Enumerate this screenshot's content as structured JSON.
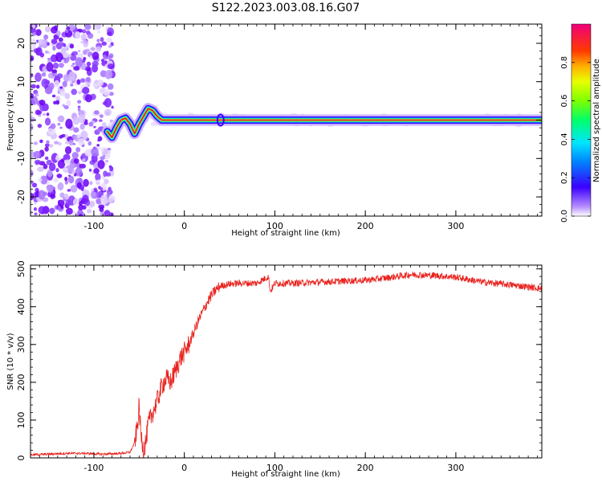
{
  "title": "S122.2023.003.08.16.G07",
  "colors": {
    "snr_line": "#e8221d",
    "track": "#e0114a",
    "noise": "#7a1cff"
  },
  "chart_data": [
    {
      "type": "heatmap",
      "xlabel": "Height of straight line (km)",
      "ylabel": "Frequency (Hz)",
      "xlim": [
        -170,
        395
      ],
      "ylim": [
        -25,
        25
      ],
      "xticks": [
        -100,
        0,
        100,
        200,
        300
      ],
      "yticks": [
        -20,
        -10,
        0,
        10,
        20
      ],
      "grid": false,
      "colorbar": {
        "label": "Normalized spectral amplitude",
        "range": [
          0,
          1
        ],
        "ticks": [
          "0.0",
          "0.2",
          "0.4",
          "0.6",
          "0.8"
        ],
        "colormap": "rainbow"
      },
      "noise_region_x": [
        -170,
        -85
      ],
      "ridge": {
        "x": [
          -85,
          -80,
          -75,
          -70,
          -65,
          -60,
          -55,
          -50,
          -45,
          -40,
          -35,
          -30,
          -25,
          -20,
          -10,
          0,
          40,
          100,
          200,
          300,
          395
        ],
        "freq": [
          -3,
          -4.5,
          -2,
          0,
          0.5,
          -1,
          -3.5,
          -1,
          1,
          3,
          2.5,
          1,
          0,
          0,
          0,
          0,
          0,
          0,
          0,
          0,
          0
        ]
      }
    },
    {
      "type": "line",
      "xlabel": "Height of straight line (km)",
      "ylabel": "SNR (10 * v/v)",
      "xlim": [
        -170,
        395
      ],
      "ylim": [
        0,
        510
      ],
      "xticks": [
        -100,
        0,
        100,
        200,
        300
      ],
      "yticks": [
        0,
        100,
        200,
        300,
        400,
        500
      ],
      "grid": false,
      "series": [
        {
          "x": [
            -170,
            -150,
            -130,
            -110,
            -90,
            -70,
            -60,
            -55,
            -52,
            -50,
            -48,
            -45,
            -42,
            -40,
            -35,
            -30,
            -25,
            -20,
            -15,
            -10,
            -5,
            0,
            5,
            10,
            15,
            20,
            25,
            30,
            35,
            40,
            50,
            60,
            80,
            93,
            95,
            100,
            120,
            150,
            180,
            200,
            220,
            250,
            280,
            300,
            330,
            360,
            395
          ],
          "y": [
            8,
            10,
            12,
            12,
            10,
            12,
            15,
            40,
            80,
            140,
            60,
            20,
            50,
            90,
            120,
            150,
            190,
            210,
            200,
            230,
            260,
            280,
            300,
            330,
            360,
            385,
            410,
            430,
            445,
            455,
            460,
            462,
            462,
            480,
            440,
            462,
            462,
            465,
            468,
            470,
            475,
            485,
            482,
            478,
            465,
            458,
            448
          ]
        }
      ]
    }
  ]
}
